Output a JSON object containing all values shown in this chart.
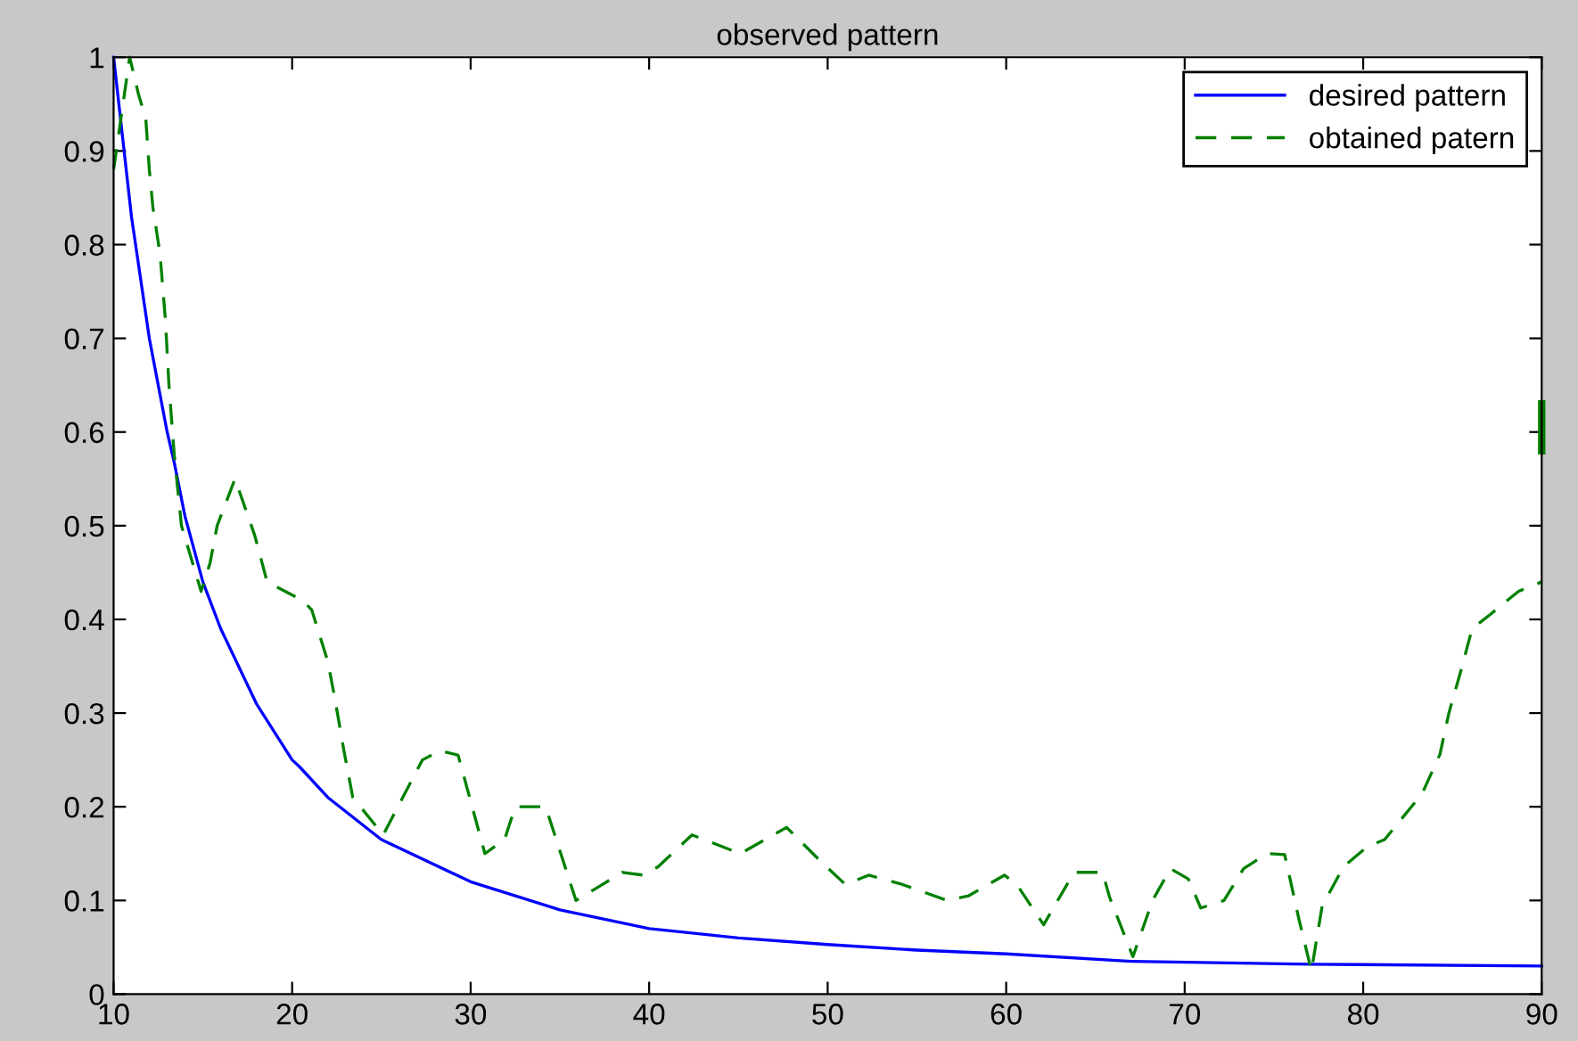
{
  "chart_data": {
    "type": "line",
    "title": "observed pattern",
    "xlim": [
      10,
      90
    ],
    "xticks": [
      10,
      20,
      30,
      40,
      50,
      60,
      70,
      80,
      90
    ],
    "ylim": [
      0,
      1
    ],
    "yticks": [
      0,
      0.1,
      0.2,
      0.3,
      0.4,
      0.5,
      0.6,
      0.7,
      0.8,
      0.9,
      1
    ],
    "grid": false,
    "legend": "top right",
    "series": [
      {
        "name": "desired pattern",
        "color": "#0000ff",
        "line_style": "solid",
        "x": [
          10,
          11,
          12,
          13,
          13.4,
          14,
          15,
          16,
          17,
          18,
          20,
          20.4,
          22,
          25,
          30,
          35,
          40,
          45,
          50,
          55,
          60,
          67,
          77,
          90
        ],
        "values": [
          1,
          0.83,
          0.7,
          0.6,
          0.567,
          0.51,
          0.44,
          0.39,
          0.35,
          0.31,
          0.25,
          0.243,
          0.21,
          0.165,
          0.12,
          0.09,
          0.07,
          0.06,
          0.053,
          0.047,
          0.043,
          0.035,
          0.032,
          0.03
        ]
      },
      {
        "name": "obtained patern",
        "color": "#008000",
        "line_style": "dashed",
        "x": [
          10,
          10.9,
          11.4,
          11.8,
          12,
          12.2,
          12.6,
          12.9,
          13.1,
          13.4,
          13.8,
          14.9,
          15.4,
          15.8,
          16.8,
          17.9,
          18.6,
          20.6,
          21.1,
          22,
          22.4,
          22.9,
          23.4,
          25.1,
          27.3,
          28.3,
          29.3,
          30.8,
          31.9,
          32.5,
          34.2,
          35.9,
          37.2,
          38.5,
          39.7,
          40.5,
          42.4,
          45.1,
          47.7,
          49.7,
          51,
          52.3,
          54.2,
          56.7,
          57.9,
          59.9,
          60.6,
          62.1,
          63.8,
          65.4,
          65.8,
          67.1,
          68.2,
          69.2,
          70.2,
          70.9,
          72.2,
          73.3,
          74.6,
          75.6,
          76.4,
          77.1,
          77.7,
          78.9,
          80.2,
          81.2,
          83.3,
          84.3,
          84.8,
          85.5,
          86.1,
          87.1,
          88.7,
          90
        ],
        "values": [
          0.88,
          1.0,
          0.96,
          0.935,
          0.88,
          0.84,
          0.79,
          0.72,
          0.65,
          0.575,
          0.5,
          0.43,
          0.46,
          0.5,
          0.55,
          0.49,
          0.44,
          0.42,
          0.41,
          0.355,
          0.315,
          0.26,
          0.21,
          0.17,
          0.25,
          0.26,
          0.255,
          0.15,
          0.165,
          0.2,
          0.2,
          0.1,
          0.115,
          0.13,
          0.127,
          0.136,
          0.17,
          0.15,
          0.178,
          0.14,
          0.117,
          0.127,
          0.117,
          0.1,
          0.105,
          0.127,
          0.117,
          0.074,
          0.13,
          0.13,
          0.103,
          0.04,
          0.1,
          0.134,
          0.123,
          0.092,
          0.1,
          0.134,
          0.15,
          0.149,
          0.08,
          0.025,
          0.094,
          0.136,
          0.157,
          0.165,
          0.214,
          0.256,
          0.3,
          0.347,
          0.39,
          0.405,
          0.43,
          0.44
        ]
      },
      {
        "color": "#008000",
        "line_style": "solid",
        "x": [
          90,
          90
        ],
        "values": [
          0.58,
          0.63
        ]
      }
    ]
  }
}
